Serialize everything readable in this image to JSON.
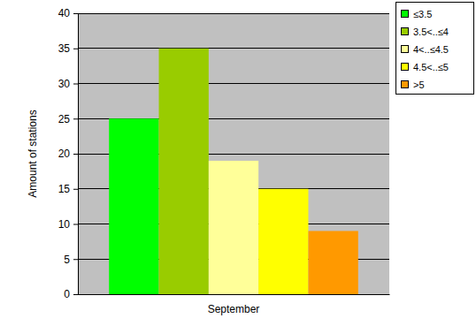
{
  "chart_data": {
    "type": "bar",
    "ylabel": "Amount of stations",
    "categories": [
      "September"
    ],
    "series": [
      {
        "name": "≤3.5",
        "color": "#00ff00",
        "values": [
          25
        ]
      },
      {
        "name": "3.5<..≤4",
        "color": "#99cc00",
        "values": [
          35
        ]
      },
      {
        "name": "4<..≤4.5",
        "color": "#ffff99",
        "values": [
          19
        ]
      },
      {
        "name": "4.5<..≤5",
        "color": "#ffff00",
        "values": [
          15
        ]
      },
      {
        "name": ">5",
        "color": "#ff9900",
        "values": [
          9
        ]
      }
    ],
    "ylim": [
      0,
      40
    ],
    "yticks": [
      0,
      5,
      10,
      15,
      20,
      25,
      30,
      35,
      40
    ],
    "grid": true,
    "legend": "top-right"
  }
}
